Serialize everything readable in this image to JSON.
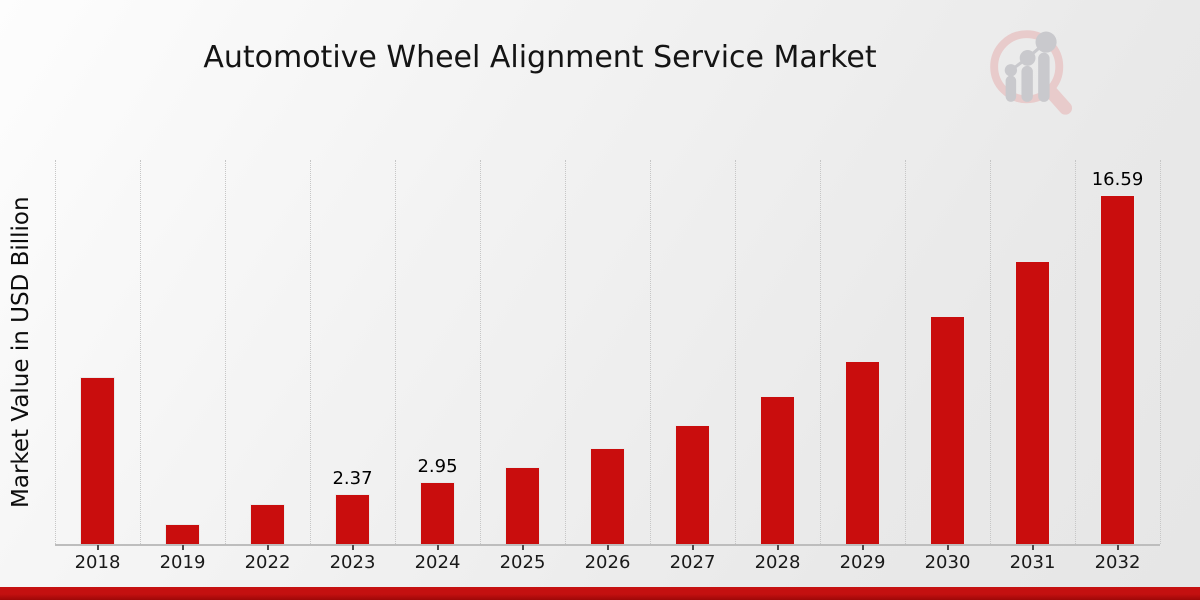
{
  "figure": {
    "title": "Automotive Wheel Alignment Service Market"
  },
  "chart_data": {
    "type": "bar",
    "title": "Automotive Wheel Alignment Service Market",
    "xlabel": "",
    "ylabel": "Market Value in USD Billion",
    "categories": [
      "2018",
      "2019",
      "2022",
      "2023",
      "2024",
      "2025",
      "2026",
      "2027",
      "2028",
      "2029",
      "2030",
      "2031",
      "2032"
    ],
    "values": [
      7.95,
      0.95,
      1.88,
      2.37,
      2.95,
      3.66,
      4.55,
      5.66,
      7.03,
      8.72,
      10.83,
      13.43,
      16.59
    ],
    "data_labels": [
      "",
      "",
      "",
      "2.37",
      "2.95",
      "",
      "",
      "",
      "",
      "",
      "",
      "",
      "16.59"
    ],
    "ylim": [
      0,
      18.25
    ],
    "y_tick_labels_shown": false,
    "grid": "vertical-dotted-at-category-boundaries",
    "legend": "none",
    "bar_color": "#c90d0d"
  },
  "colors": {
    "bar": "#c90d0d",
    "footer_stripe_top": "#c61111",
    "footer_stripe_bottom": "#9d0808",
    "gridline": "#c6c6c6",
    "axis_line": "#bdbdbd",
    "text": "#141414",
    "logo_ring_pink": "#e8caca",
    "logo_gray": "#c8c8cc",
    "background_light": "#fdfdfd",
    "background_dark": "#e6e6e6"
  },
  "logo": {
    "name": "market-research-magnifier-logo"
  }
}
